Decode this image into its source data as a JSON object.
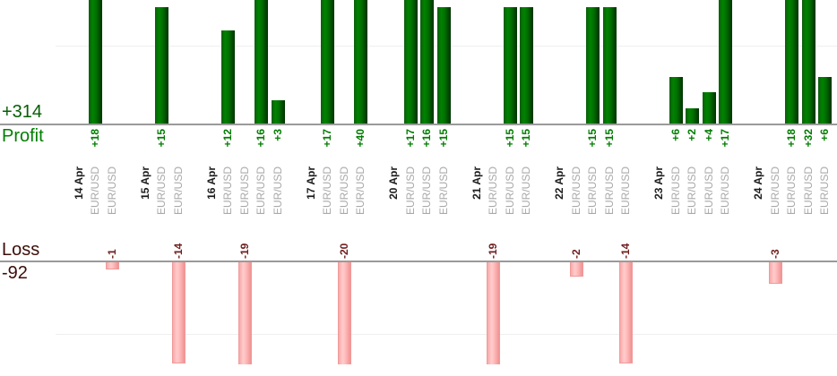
{
  "chart_data": {
    "type": "bar",
    "profit_summary": "+314",
    "profit_axis_label": "Profit",
    "loss_axis_label": "Loss",
    "loss_summary": "-92",
    "colors": {
      "profit_bar": "#008000",
      "loss_bar": "#ffb9b9",
      "profit_text": "#007c00",
      "profit_summary_text": "#055e05",
      "loss_text": "#702020",
      "loss_summary_text": "#3c0d08",
      "date_text": "#1c1c1c",
      "symbol_text": "#a9a9a9",
      "axis_line": "#9a9a9a",
      "gridline": "#efefef"
    },
    "layout_hints": {
      "profit_above_axis": true,
      "loss_below_axis": true,
      "labels_rotated_90deg": true,
      "gridlines_at": [
        10,
        -10
      ]
    },
    "groups": [
      {
        "date": "14 Apr",
        "entries": [
          {
            "symbol": "EUR/USD",
            "value": 18
          },
          {
            "symbol": "EUR/USD",
            "value": -1
          }
        ]
      },
      {
        "date": "15 Apr",
        "entries": [
          {
            "symbol": "EUR/USD",
            "value": 15
          },
          {
            "symbol": "EUR/USD",
            "value": -14
          }
        ]
      },
      {
        "date": "16 Apr",
        "entries": [
          {
            "symbol": "EUR/USD",
            "value": 12
          },
          {
            "symbol": "EUR/USD",
            "value": -19
          },
          {
            "symbol": "EUR/USD",
            "value": 16
          },
          {
            "symbol": "EUR/USD",
            "value": 3
          }
        ]
      },
      {
        "date": "17 Apr",
        "entries": [
          {
            "symbol": "EUR/USD",
            "value": 17
          },
          {
            "symbol": "EUR/USD",
            "value": -20
          },
          {
            "symbol": "EUR/USD",
            "value": 40
          }
        ]
      },
      {
        "date": "20 Apr",
        "entries": [
          {
            "symbol": "EUR/USD",
            "value": 17
          },
          {
            "symbol": "EUR/USD",
            "value": 16
          },
          {
            "symbol": "EUR/USD",
            "value": 15
          }
        ]
      },
      {
        "date": "21 Apr",
        "entries": [
          {
            "symbol": "EUR/USD",
            "value": -19
          },
          {
            "symbol": "EUR/USD",
            "value": 15
          },
          {
            "symbol": "EUR/USD",
            "value": 15
          }
        ]
      },
      {
        "date": "22 Apr",
        "entries": [
          {
            "symbol": "EUR/USD",
            "value": -2
          },
          {
            "symbol": "EUR/USD",
            "value": 15
          },
          {
            "symbol": "EUR/USD",
            "value": 15
          },
          {
            "symbol": "EUR/USD",
            "value": -14
          }
        ]
      },
      {
        "date": "23 Apr",
        "entries": [
          {
            "symbol": "EUR/USD",
            "value": 6
          },
          {
            "symbol": "EUR/USD",
            "value": 2
          },
          {
            "symbol": "EUR/USD",
            "value": 4
          },
          {
            "symbol": "EUR/USD",
            "value": 17
          }
        ]
      },
      {
        "date": "24 Apr",
        "entries": [
          {
            "symbol": "EUR/USD",
            "value": -3
          },
          {
            "symbol": "EUR/USD",
            "value": 18
          },
          {
            "symbol": "EUR/USD",
            "value": 32
          },
          {
            "symbol": "EUR/USD",
            "value": 6
          }
        ]
      }
    ]
  }
}
